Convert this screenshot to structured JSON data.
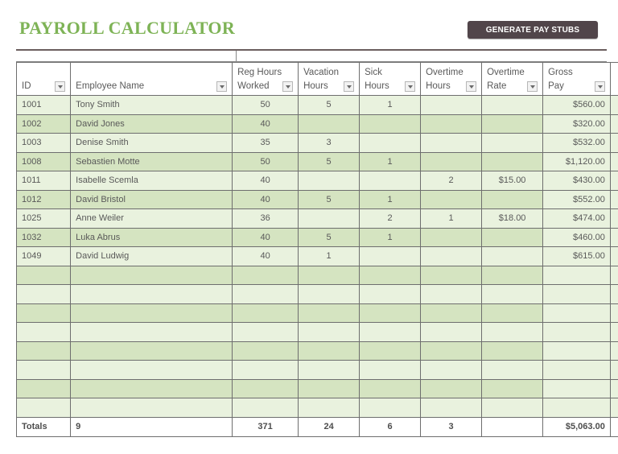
{
  "header": {
    "title": "PAYROLL CALCULATOR",
    "generate_button": "GENERATE  PAY STUBS"
  },
  "colors": {
    "title_green": "#7eb356",
    "button_bg": "#51454a",
    "row_light": "#e9f2de",
    "row_dark": "#d5e4c1"
  },
  "table": {
    "columns": [
      {
        "key": "id",
        "label": "ID"
      },
      {
        "key": "name",
        "label": "Employee Name"
      },
      {
        "key": "reg",
        "label": "Reg Hours Worked"
      },
      {
        "key": "vac",
        "label": "Vacation Hours"
      },
      {
        "key": "sick",
        "label": "Sick Hours"
      },
      {
        "key": "ot",
        "label": "Overtime Hours"
      },
      {
        "key": "otrate",
        "label": "Overtime Rate"
      },
      {
        "key": "gross",
        "label": "Gross Pay"
      }
    ],
    "rows": [
      {
        "id": "1001",
        "name": "Tony Smith",
        "reg": "50",
        "vac": "5",
        "sick": "1",
        "ot": "",
        "otrate": "",
        "gross": "$560.00"
      },
      {
        "id": "1002",
        "name": "David Jones",
        "reg": "40",
        "vac": "",
        "sick": "",
        "ot": "",
        "otrate": "",
        "gross": "$320.00"
      },
      {
        "id": "1003",
        "name": "Denise Smith",
        "reg": "35",
        "vac": "3",
        "sick": "",
        "ot": "",
        "otrate": "",
        "gross": "$532.00"
      },
      {
        "id": "1008",
        "name": "Sebastien Motte",
        "reg": "50",
        "vac": "5",
        "sick": "1",
        "ot": "",
        "otrate": "",
        "gross": "$1,120.00"
      },
      {
        "id": "1011",
        "name": "Isabelle Scemla",
        "reg": "40",
        "vac": "",
        "sick": "",
        "ot": "2",
        "otrate": "$15.00",
        "gross": "$430.00"
      },
      {
        "id": "1012",
        "name": "David Bristol",
        "reg": "40",
        "vac": "5",
        "sick": "1",
        "ot": "",
        "otrate": "",
        "gross": "$552.00"
      },
      {
        "id": "1025",
        "name": "Anne Weiler",
        "reg": "36",
        "vac": "",
        "sick": "2",
        "ot": "1",
        "otrate": "$18.00",
        "gross": "$474.00"
      },
      {
        "id": "1032",
        "name": "Luka Abrus",
        "reg": "40",
        "vac": "5",
        "sick": "1",
        "ot": "",
        "otrate": "",
        "gross": "$460.00"
      },
      {
        "id": "1049",
        "name": "David Ludwig",
        "reg": "40",
        "vac": "1",
        "sick": "",
        "ot": "",
        "otrate": "",
        "gross": "$615.00"
      },
      {
        "id": "",
        "name": "",
        "reg": "",
        "vac": "",
        "sick": "",
        "ot": "",
        "otrate": "",
        "gross": ""
      },
      {
        "id": "",
        "name": "",
        "reg": "",
        "vac": "",
        "sick": "",
        "ot": "",
        "otrate": "",
        "gross": ""
      },
      {
        "id": "",
        "name": "",
        "reg": "",
        "vac": "",
        "sick": "",
        "ot": "",
        "otrate": "",
        "gross": ""
      },
      {
        "id": "",
        "name": "",
        "reg": "",
        "vac": "",
        "sick": "",
        "ot": "",
        "otrate": "",
        "gross": ""
      },
      {
        "id": "",
        "name": "",
        "reg": "",
        "vac": "",
        "sick": "",
        "ot": "",
        "otrate": "",
        "gross": ""
      },
      {
        "id": "",
        "name": "",
        "reg": "",
        "vac": "",
        "sick": "",
        "ot": "",
        "otrate": "",
        "gross": ""
      },
      {
        "id": "",
        "name": "",
        "reg": "",
        "vac": "",
        "sick": "",
        "ot": "",
        "otrate": "",
        "gross": ""
      },
      {
        "id": "",
        "name": "",
        "reg": "",
        "vac": "",
        "sick": "",
        "ot": "",
        "otrate": "",
        "gross": ""
      }
    ],
    "totals": {
      "id": "Totals",
      "name": "9",
      "reg": "371",
      "vac": "24",
      "sick": "6",
      "ot": "3",
      "otrate": "",
      "gross": "$5,063.00"
    }
  }
}
